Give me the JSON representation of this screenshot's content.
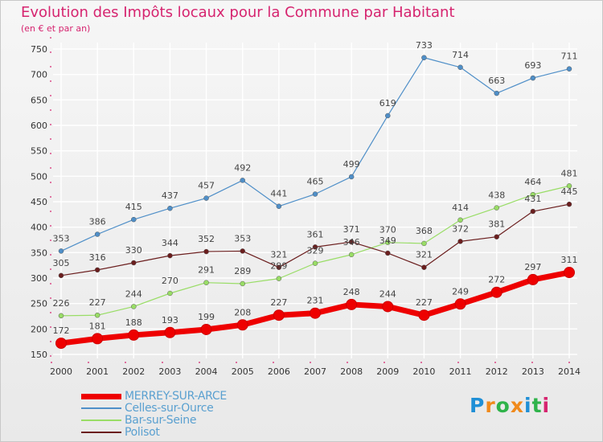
{
  "header": {
    "title": "Evolution des Impôts locaux pour la Commune par Habitant",
    "subtitle": "(en € et par an)"
  },
  "chart_data": {
    "type": "line",
    "title": "Evolution des Impôts locaux pour la Commune par Habitant",
    "ylabel": "(en € et par an)",
    "xlabel": "",
    "x": [
      "2000",
      "2001",
      "2002",
      "2003",
      "2004",
      "2005",
      "2006",
      "2007",
      "2008",
      "2009",
      "2010",
      "2011",
      "2012",
      "2013",
      "2014"
    ],
    "ylim": [
      150,
      750
    ],
    "yticks": [
      150,
      200,
      250,
      300,
      350,
      400,
      450,
      500,
      550,
      600,
      650,
      700,
      750
    ],
    "grid": true,
    "legend_position": "bottom-left",
    "series": [
      {
        "name": "MERREY-SUR-ARCE",
        "color": "#ee0000",
        "values": [
          172,
          181,
          188,
          193,
          199,
          208,
          227,
          231,
          248,
          244,
          227,
          249,
          272,
          297,
          311
        ]
      },
      {
        "name": "Celles-sur-Ource",
        "color": "#4f8fc8",
        "values": [
          353,
          386,
          415,
          437,
          457,
          492,
          441,
          465,
          499,
          619,
          733,
          714,
          663,
          693,
          711
        ]
      },
      {
        "name": "Bar-sur-Seine",
        "color": "#99dd66",
        "values": [
          226,
          227,
          244,
          270,
          291,
          289,
          299,
          329,
          346,
          370,
          368,
          414,
          438,
          464,
          481
        ]
      },
      {
        "name": "Polisot",
        "color": "#6b1e1e",
        "values": [
          305,
          316,
          330,
          344,
          352,
          353,
          321,
          361,
          371,
          349,
          321,
          372,
          381,
          431,
          445
        ]
      }
    ]
  },
  "legend": {
    "items": [
      {
        "label": "MERREY-SUR-ARCE",
        "color": "#ee0000"
      },
      {
        "label": "Celles-sur-Ource",
        "color": "#4f8fc8"
      },
      {
        "label": "Bar-sur-Seine",
        "color": "#99dd66"
      },
      {
        "label": "Polisot",
        "color": "#6b1e1e"
      }
    ]
  },
  "brand": {
    "letters": [
      "P",
      "r",
      "o",
      "x",
      "i",
      "t",
      "i"
    ],
    "colors": [
      "#1f8fd6",
      "#f08a1c",
      "#2fb34a",
      "#f08a1c",
      "#1f8fd6",
      "#2fb34a",
      "#d6246f"
    ]
  }
}
